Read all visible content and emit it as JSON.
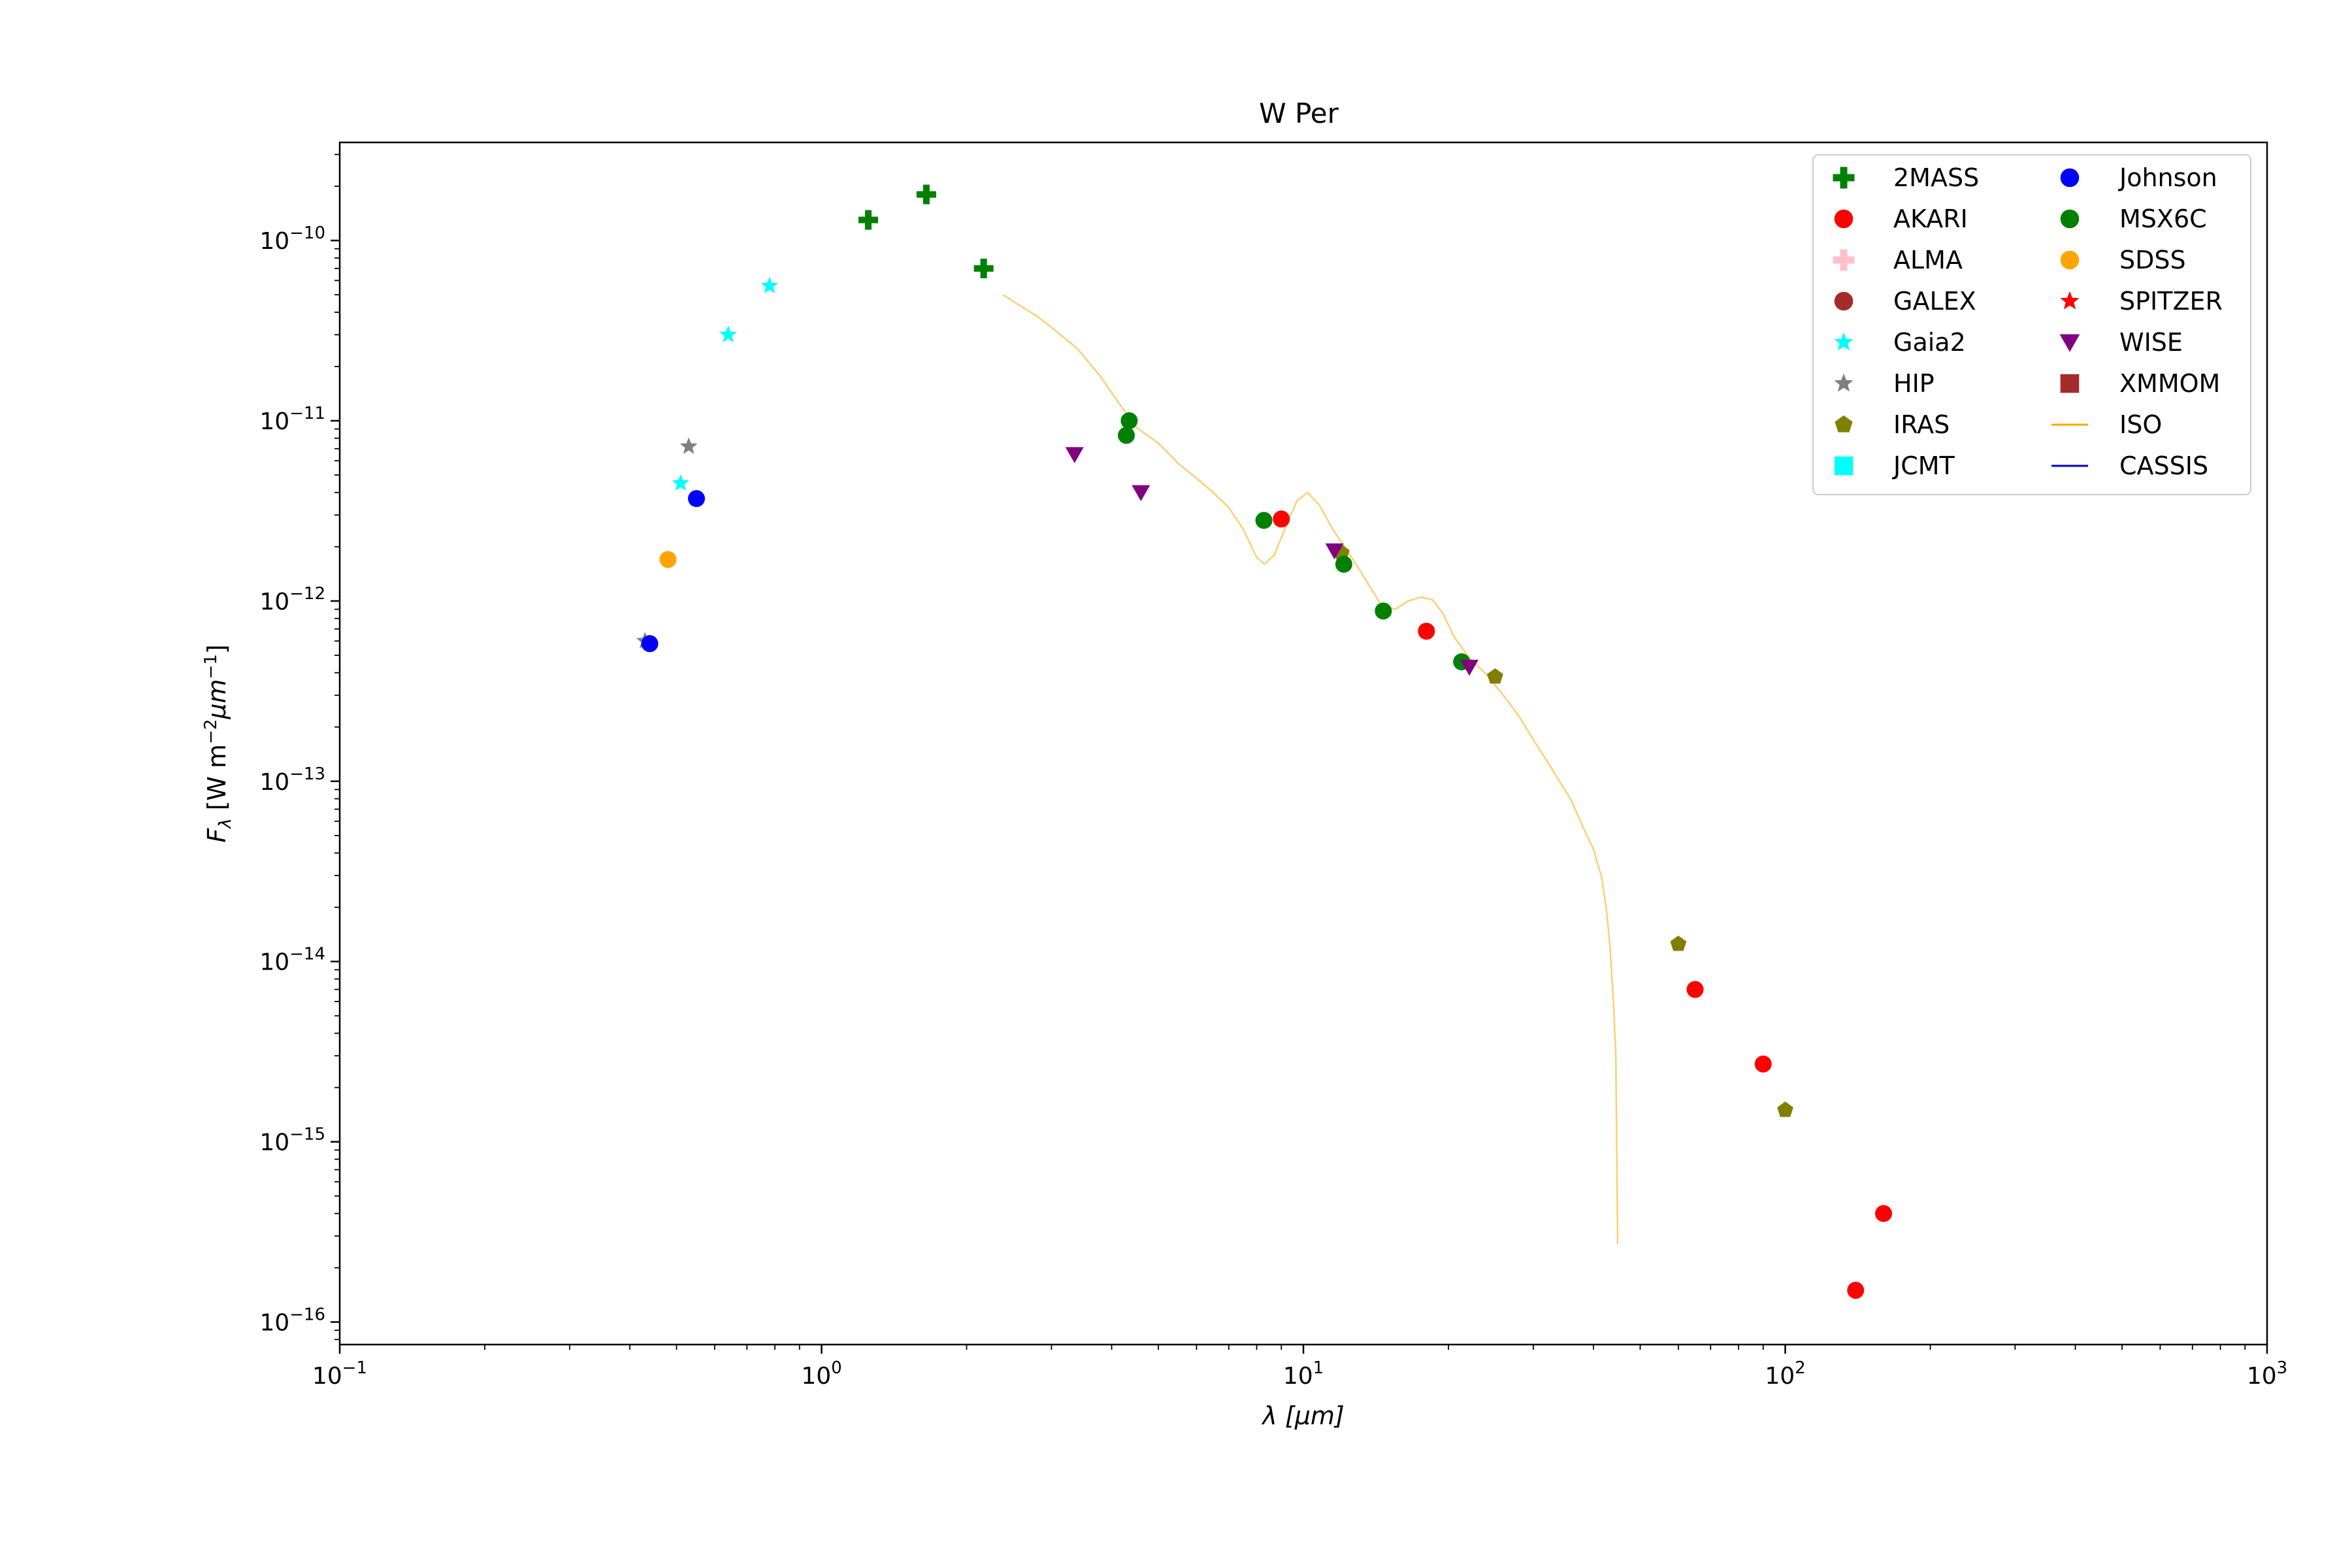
{
  "chart_data": {
    "type": "scatter",
    "title": "W Per",
    "xlabel": "λ [μm]",
    "ylabel": "Fλ [W m⁻² μm⁻¹]",
    "xscale": "log",
    "yscale": "log",
    "xlim": [
      0.1,
      1000
    ],
    "ylim": [
      7.5e-17,
      3.5e-10
    ],
    "grid": false,
    "legend_position": "top-right",
    "x_ticks": [
      {
        "value": 0.1,
        "base": "10",
        "exp": "−1"
      },
      {
        "value": 1,
        "base": "10",
        "exp": "0"
      },
      {
        "value": 10,
        "base": "10",
        "exp": "1"
      },
      {
        "value": 100,
        "base": "10",
        "exp": "2"
      },
      {
        "value": 1000,
        "base": "10",
        "exp": "3"
      }
    ],
    "y_ticks": [
      {
        "value": 1e-16,
        "base": "10",
        "exp": "−16"
      },
      {
        "value": 1e-15,
        "base": "10",
        "exp": "−15"
      },
      {
        "value": 1e-14,
        "base": "10",
        "exp": "−14"
      },
      {
        "value": 1e-13,
        "base": "10",
        "exp": "−13"
      },
      {
        "value": 1e-12,
        "base": "10",
        "exp": "−12"
      },
      {
        "value": 1e-11,
        "base": "10",
        "exp": "−11"
      },
      {
        "value": 1e-10,
        "base": "10",
        "exp": "−10"
      }
    ],
    "series": [
      {
        "name": "2MASS",
        "marker": "plus",
        "color": "#008000",
        "points": [
          [
            1.25,
            1.3e-10
          ],
          [
            1.65,
            1.8e-10
          ],
          [
            2.17,
            7e-11
          ]
        ]
      },
      {
        "name": "AKARI",
        "marker": "circle",
        "color": "#ff0000",
        "points": [
          [
            9.0,
            2.85e-12
          ],
          [
            18.0,
            6.8e-13
          ],
          [
            65.0,
            7e-15
          ],
          [
            90.0,
            2.7e-15
          ],
          [
            140.0,
            1.5e-16
          ],
          [
            160.0,
            4e-16
          ]
        ]
      },
      {
        "name": "ALMA",
        "marker": "plus",
        "color": "#ffc0cb",
        "points": []
      },
      {
        "name": "GALEX",
        "marker": "circle",
        "color": "#a52a2a",
        "points": []
      },
      {
        "name": "Gaia2",
        "marker": "star",
        "color": "#00ffff",
        "points": [
          [
            0.51,
            4.5e-12
          ],
          [
            0.64,
            3e-11
          ],
          [
            0.78,
            5.6e-11
          ]
        ]
      },
      {
        "name": "HIP",
        "marker": "star",
        "color": "#808080",
        "points": [
          [
            0.43,
            6e-13
          ],
          [
            0.53,
            7.2e-12
          ]
        ]
      },
      {
        "name": "IRAS",
        "marker": "pentagon",
        "color": "#808000",
        "points": [
          [
            12.0,
            1.85e-12
          ],
          [
            25.0,
            3.8e-13
          ],
          [
            60.0,
            1.25e-14
          ],
          [
            100.0,
            1.5e-15
          ]
        ]
      },
      {
        "name": "JCMT",
        "marker": "square",
        "color": "#00ffff",
        "points": []
      },
      {
        "name": "Johnson",
        "marker": "circle",
        "color": "#0000ff",
        "points": [
          [
            0.44,
            5.8e-13
          ],
          [
            0.55,
            3.7e-12
          ]
        ]
      },
      {
        "name": "MSX6C",
        "marker": "circle",
        "color": "#008000",
        "points": [
          [
            4.29,
            8.3e-12
          ],
          [
            4.35,
            1e-11
          ],
          [
            8.28,
            2.8e-12
          ],
          [
            12.13,
            1.6e-12
          ],
          [
            14.65,
            8.8e-13
          ],
          [
            21.3,
            4.6e-13
          ]
        ]
      },
      {
        "name": "SDSS",
        "marker": "circle",
        "color": "#ffa500",
        "points": [
          [
            0.48,
            1.7e-12
          ]
        ]
      },
      {
        "name": "SPITZER",
        "marker": "star",
        "color": "#ff0000",
        "points": []
      },
      {
        "name": "WISE",
        "marker": "triangle-down",
        "color": "#800080",
        "points": [
          [
            3.35,
            6.5e-12
          ],
          [
            4.6,
            4e-12
          ],
          [
            11.6,
            1.9e-12
          ],
          [
            22.1,
            4.3e-13
          ]
        ]
      },
      {
        "name": "XMMOM",
        "marker": "square",
        "color": "#a52a2a",
        "points": []
      },
      {
        "name": "ISO",
        "marker": "line",
        "color": "#ffa500",
        "points": [
          [
            2.38,
            5e-11
          ],
          [
            2.6,
            4.3e-11
          ],
          [
            2.8,
            3.8e-11
          ],
          [
            3.0,
            3.3e-11
          ],
          [
            3.4,
            2.5e-11
          ],
          [
            3.8,
            1.75e-11
          ],
          [
            4.1,
            1.3e-11
          ],
          [
            4.5,
            9.2e-12
          ],
          [
            5.0,
            7.5e-12
          ],
          [
            5.5,
            5.8e-12
          ],
          [
            6.0,
            4.8e-12
          ],
          [
            6.5,
            4e-12
          ],
          [
            7.0,
            3.3e-12
          ],
          [
            7.5,
            2.5e-12
          ],
          [
            8.0,
            1.75e-12
          ],
          [
            8.3,
            1.6e-12
          ],
          [
            8.7,
            1.8e-12
          ],
          [
            9.2,
            2.6e-12
          ],
          [
            9.7,
            3.6e-12
          ],
          [
            10.2,
            4e-12
          ],
          [
            10.8,
            3.4e-12
          ],
          [
            11.5,
            2.5e-12
          ],
          [
            12.5,
            1.8e-12
          ],
          [
            13.5,
            1.3e-12
          ],
          [
            14.5,
            9.5e-13
          ],
          [
            15.5,
            9e-13
          ],
          [
            16.5,
            1e-12
          ],
          [
            17.5,
            1.05e-12
          ],
          [
            18.5,
            1.02e-12
          ],
          [
            19.5,
            8.5e-13
          ],
          [
            20.5,
            6.4e-13
          ],
          [
            22.0,
            4.9e-13
          ],
          [
            24.0,
            3.9e-13
          ],
          [
            26.0,
            3e-13
          ],
          [
            28.0,
            2.3e-13
          ],
          [
            30.0,
            1.7e-13
          ],
          [
            32.0,
            1.3e-13
          ],
          [
            34.0,
            1e-13
          ],
          [
            36.0,
            7.8e-14
          ],
          [
            38.0,
            5.6e-14
          ],
          [
            40.0,
            4.2e-14
          ],
          [
            41.5,
            3e-14
          ],
          [
            42.5,
            2e-14
          ],
          [
            43.3,
            1.2e-14
          ],
          [
            44.0,
            6e-15
          ],
          [
            44.5,
            3e-15
          ],
          [
            44.9,
            2.7e-16
          ]
        ]
      },
      {
        "name": "CASSIS",
        "marker": "line",
        "color": "#0000cd",
        "points": []
      }
    ]
  }
}
